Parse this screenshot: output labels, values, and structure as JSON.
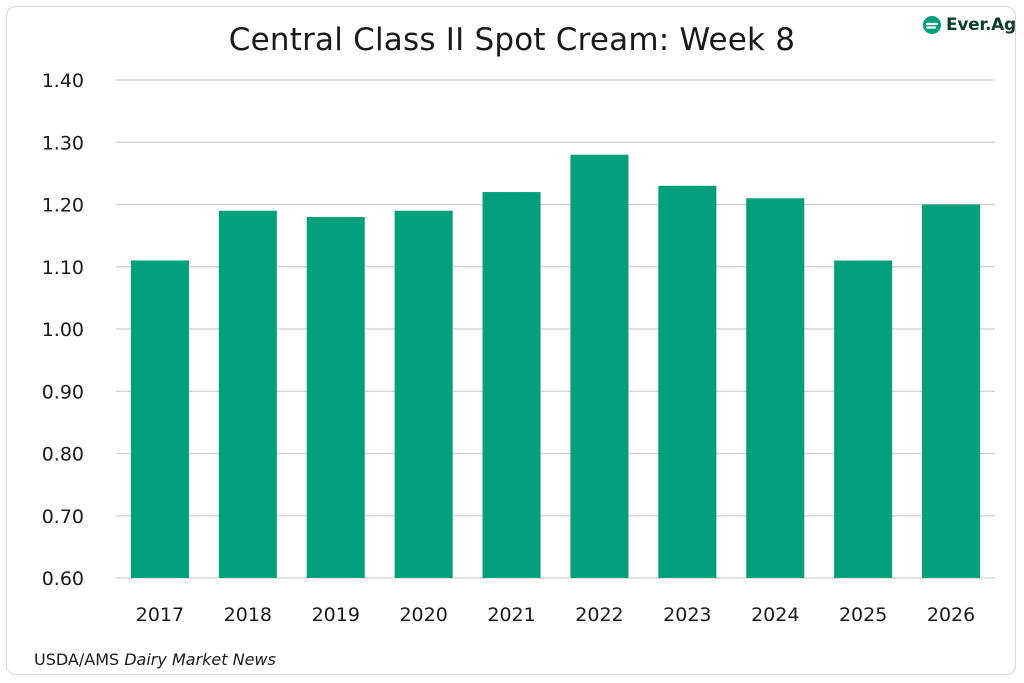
{
  "chart_data": {
    "type": "bar",
    "title": "Central Class II Spot Cream: Week 8",
    "categories": [
      "2017",
      "2018",
      "2019",
      "2020",
      "2021",
      "2022",
      "2023",
      "2024",
      "2025",
      "2026"
    ],
    "values": [
      1.11,
      1.19,
      1.18,
      1.19,
      1.22,
      1.28,
      1.23,
      1.21,
      1.11,
      1.2
    ],
    "xlabel": "",
    "ylabel": "",
    "ylim": [
      0.6,
      1.4
    ],
    "yticks": [
      "0.60",
      "0.70",
      "0.80",
      "0.90",
      "1.00",
      "1.10",
      "1.20",
      "1.30",
      "1.40"
    ],
    "grid": true,
    "bar_color": "#00a07d"
  },
  "brand": {
    "name": "Ever.Ag",
    "icon": "ever-ag-logo-icon",
    "color": "#0b3d2e",
    "accent": "#00a07d"
  },
  "source": {
    "prefix": "USDA/AMS ",
    "publication": "Dairy Market News"
  }
}
